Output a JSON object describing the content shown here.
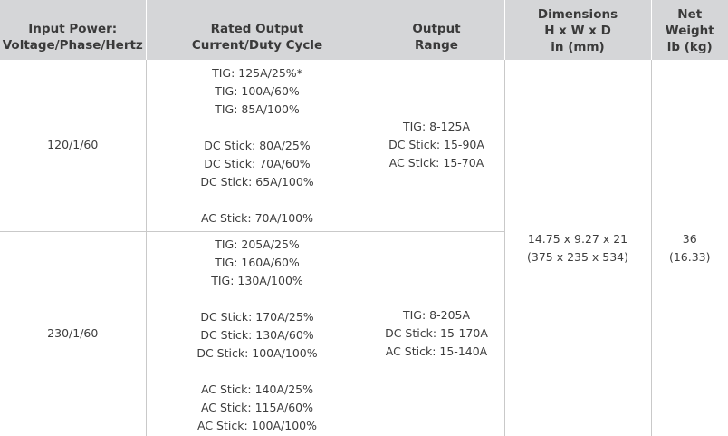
{
  "headers": {
    "input_power": [
      "Input Power:",
      "Voltage/Phase/Hertz"
    ],
    "rated_output": [
      "Rated Output",
      "Current/Duty Cycle"
    ],
    "output_range": [
      "Output",
      "Range"
    ],
    "dimensions": [
      "Dimensions",
      "H x W x D",
      "in (mm)"
    ],
    "net_weight": [
      "Net",
      "Weight",
      "lb (kg)"
    ]
  },
  "rows": [
    {
      "input_power": "120/1/60",
      "rated_output_groups": [
        [
          "TIG: 125A/25%*",
          "TIG: 100A/60%",
          "TIG: 85A/100%"
        ],
        [
          "DC Stick: 80A/25%",
          "DC Stick: 70A/60%",
          "DC Stick: 65A/100%"
        ],
        [
          "AC Stick: 70A/100%"
        ]
      ],
      "output_range": [
        "TIG: 8-125A",
        "DC Stick: 15-90A",
        "AC Stick: 15-70A"
      ]
    },
    {
      "input_power": "230/1/60",
      "rated_output_groups": [
        [
          "TIG: 205A/25%",
          "TIG: 160A/60%",
          "TIG: 130A/100%"
        ],
        [
          "DC Stick: 170A/25%",
          "DC Stick: 130A/60%",
          "DC Stick: 100A/100%"
        ],
        [
          "AC Stick: 140A/25%",
          "AC Stick: 115A/60%",
          "AC Stick: 100A/100%"
        ]
      ],
      "output_range": [
        "TIG: 8-205A",
        "DC Stick: 15-170A",
        "AC Stick: 15-140A"
      ]
    }
  ],
  "dimensions": [
    "14.75 x 9.27 x 21",
    "(375 x 235 x 534)"
  ],
  "net_weight": [
    "36",
    "(16.33)"
  ]
}
